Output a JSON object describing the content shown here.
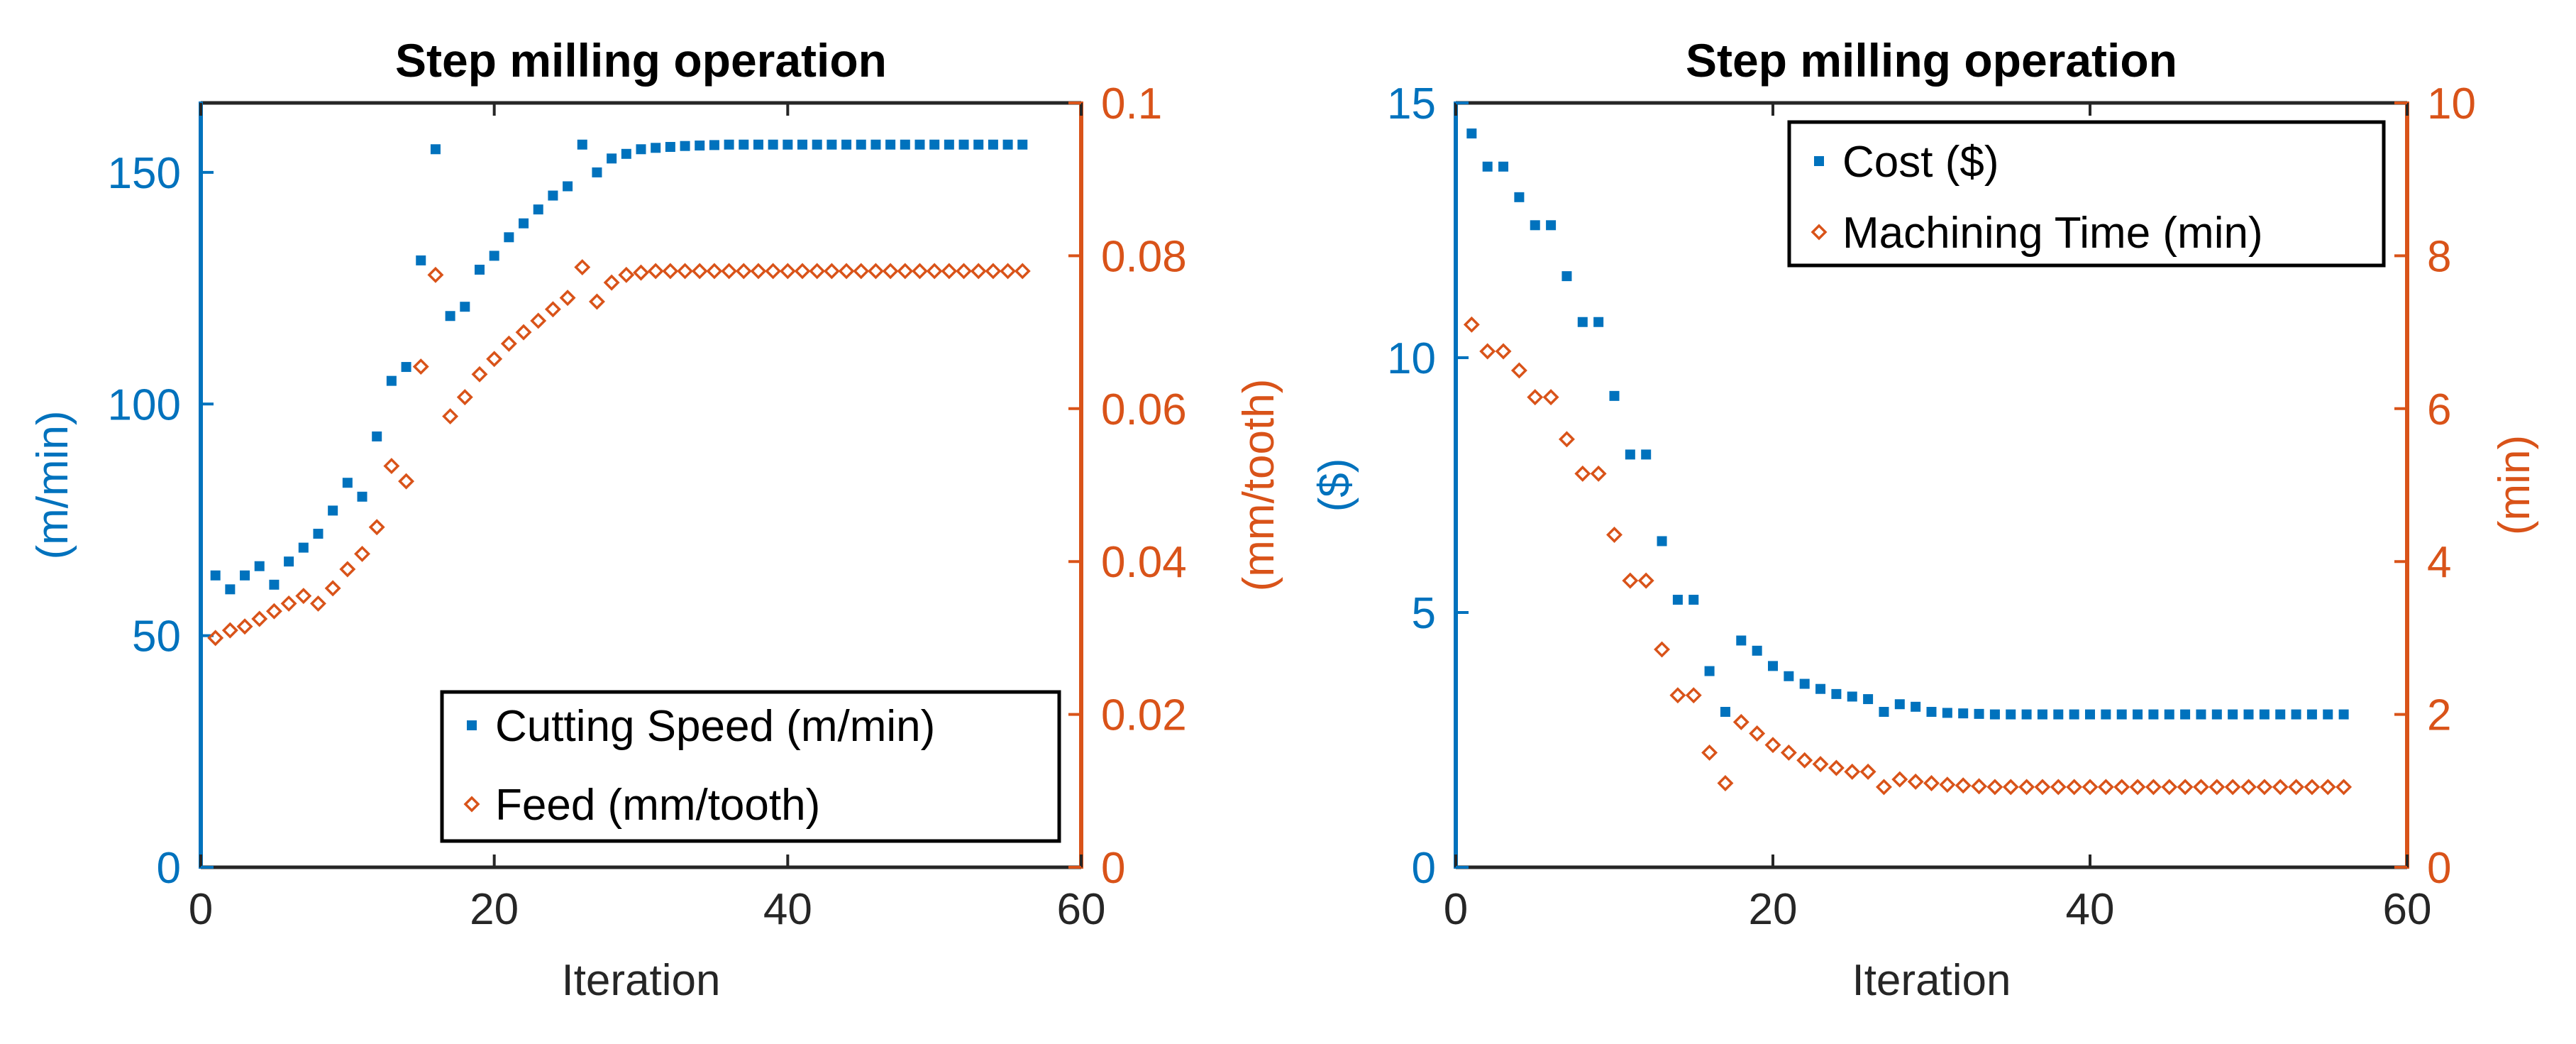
{
  "colors": {
    "left_axis": "#0072BD",
    "right_axis": "#D95319",
    "frame": "#262626",
    "legend_border": "#000000"
  },
  "chart_data": [
    {
      "type": "scatter",
      "title": "Step milling operation",
      "xlabel": "Iteration",
      "ylabel_left": "(m/min)",
      "ylabel_right": "(mm/tooth)",
      "xlim": [
        0,
        60
      ],
      "ylim_left": [
        0,
        165
      ],
      "ylim_right": [
        0,
        0.1
      ],
      "xticks": [
        "0",
        "20",
        "40",
        "60"
      ],
      "yticks_left": [
        "0",
        "50",
        "100",
        "150"
      ],
      "yticks_right": [
        "0",
        "0.02",
        "0.04",
        "0.06",
        "0.08",
        "0.1"
      ],
      "legend_position": "bottom-right",
      "series": [
        {
          "name": "Cutting Speed (m/min)",
          "axis": "left",
          "marker": "square",
          "x": [
            1,
            2,
            3,
            4,
            5,
            6,
            7,
            8,
            9,
            10,
            11,
            12,
            13,
            14,
            15,
            16,
            17,
            18,
            19,
            20,
            21,
            22,
            23,
            24,
            25,
            26,
            27,
            28,
            29,
            30,
            31,
            32,
            33,
            34,
            35,
            36,
            37,
            38,
            39,
            40,
            41,
            42,
            43,
            44,
            45,
            46,
            47,
            48,
            49,
            50,
            51,
            52,
            53,
            54,
            55,
            56
          ],
          "y": [
            63,
            60,
            63,
            65,
            61,
            66,
            69,
            72,
            77,
            83,
            80,
            93,
            105,
            108,
            131,
            155,
            119,
            121,
            129,
            132,
            136,
            139,
            142,
            145,
            147,
            156,
            150,
            153,
            154,
            155,
            155.3,
            155.5,
            155.7,
            155.8,
            155.9,
            156,
            156,
            156,
            156,
            156,
            156,
            156,
            156,
            156,
            156,
            156,
            156,
            156,
            156,
            156,
            156,
            156,
            156,
            156,
            156,
            156
          ]
        },
        {
          "name": "Feed (mm/tooth)",
          "axis": "right",
          "marker": "diamond",
          "x": [
            1,
            2,
            3,
            4,
            5,
            6,
            7,
            8,
            9,
            10,
            11,
            12,
            13,
            14,
            15,
            16,
            17,
            18,
            19,
            20,
            21,
            22,
            23,
            24,
            25,
            26,
            27,
            28,
            29,
            30,
            31,
            32,
            33,
            34,
            35,
            36,
            37,
            38,
            39,
            40,
            41,
            42,
            43,
            44,
            45,
            46,
            47,
            48,
            49,
            50,
            51,
            52,
            53,
            54,
            55,
            56
          ],
          "y": [
            0.03,
            0.031,
            0.0315,
            0.0325,
            0.0335,
            0.0345,
            0.0355,
            0.0345,
            0.0365,
            0.039,
            0.041,
            0.0445,
            0.0525,
            0.0505,
            0.0655,
            0.0775,
            0.059,
            0.0615,
            0.0645,
            0.0665,
            0.0685,
            0.07,
            0.0715,
            0.073,
            0.0745,
            0.0785,
            0.074,
            0.0765,
            0.0775,
            0.0778,
            0.078,
            0.078,
            0.078,
            0.078,
            0.078,
            0.078,
            0.078,
            0.078,
            0.078,
            0.078,
            0.078,
            0.078,
            0.078,
            0.078,
            0.078,
            0.078,
            0.078,
            0.078,
            0.078,
            0.078,
            0.078,
            0.078,
            0.078,
            0.078,
            0.078,
            0.078
          ]
        }
      ]
    },
    {
      "type": "scatter",
      "title": "Step milling operation",
      "xlabel": "Iteration",
      "ylabel_left": "($)",
      "ylabel_right": "(min)",
      "xlim": [
        0,
        60
      ],
      "ylim_left": [
        0,
        15
      ],
      "ylim_right": [
        0,
        10
      ],
      "xticks": [
        "0",
        "20",
        "40",
        "60"
      ],
      "yticks_left": [
        "0",
        "5",
        "10",
        "15"
      ],
      "yticks_right": [
        "0",
        "2",
        "4",
        "6",
        "8",
        "10"
      ],
      "legend_position": "top-right",
      "series": [
        {
          "name": "Cost ($)",
          "axis": "left",
          "marker": "square",
          "x": [
            1,
            2,
            3,
            4,
            5,
            6,
            7,
            8,
            9,
            10,
            11,
            12,
            13,
            14,
            15,
            16,
            17,
            18,
            19,
            20,
            21,
            22,
            23,
            24,
            25,
            26,
            27,
            28,
            29,
            30,
            31,
            32,
            33,
            34,
            35,
            36,
            37,
            38,
            39,
            40,
            41,
            42,
            43,
            44,
            45,
            46,
            47,
            48,
            49,
            50,
            51,
            52,
            53,
            54,
            55,
            56
          ],
          "y": [
            14.4,
            13.75,
            13.75,
            13.15,
            12.6,
            12.6,
            11.6,
            10.7,
            10.7,
            9.25,
            8.1,
            8.1,
            6.4,
            5.25,
            5.25,
            3.85,
            3.05,
            4.45,
            4.25,
            3.95,
            3.75,
            3.6,
            3.5,
            3.4,
            3.35,
            3.3,
            3.05,
            3.2,
            3.15,
            3.05,
            3.03,
            3.02,
            3.01,
            3.0,
            3.0,
            3.0,
            3.0,
            3.0,
            3.0,
            3.0,
            3.0,
            3.0,
            3.0,
            3.0,
            3.0,
            3.0,
            3.0,
            3.0,
            3.0,
            3.0,
            3.0,
            3.0,
            3.0,
            3.0,
            3.0,
            3.0
          ]
        },
        {
          "name": "Machining Time (min)",
          "axis": "right",
          "marker": "diamond",
          "x": [
            1,
            2,
            3,
            4,
            5,
            6,
            7,
            8,
            9,
            10,
            11,
            12,
            13,
            14,
            15,
            16,
            17,
            18,
            19,
            20,
            21,
            22,
            23,
            24,
            25,
            26,
            27,
            28,
            29,
            30,
            31,
            32,
            33,
            34,
            35,
            36,
            37,
            38,
            39,
            40,
            41,
            42,
            43,
            44,
            45,
            46,
            47,
            48,
            49,
            50,
            51,
            52,
            53,
            54,
            55,
            56
          ],
          "y": [
            7.1,
            6.75,
            6.75,
            6.5,
            6.15,
            6.15,
            5.6,
            5.15,
            5.15,
            4.35,
            3.75,
            3.75,
            2.85,
            2.25,
            2.25,
            1.5,
            1.1,
            1.9,
            1.75,
            1.6,
            1.5,
            1.4,
            1.35,
            1.3,
            1.25,
            1.25,
            1.05,
            1.15,
            1.12,
            1.1,
            1.08,
            1.07,
            1.06,
            1.05,
            1.05,
            1.05,
            1.05,
            1.05,
            1.05,
            1.05,
            1.05,
            1.05,
            1.05,
            1.05,
            1.05,
            1.05,
            1.05,
            1.05,
            1.05,
            1.05,
            1.05,
            1.05,
            1.05,
            1.05,
            1.05,
            1.05
          ]
        }
      ]
    }
  ]
}
